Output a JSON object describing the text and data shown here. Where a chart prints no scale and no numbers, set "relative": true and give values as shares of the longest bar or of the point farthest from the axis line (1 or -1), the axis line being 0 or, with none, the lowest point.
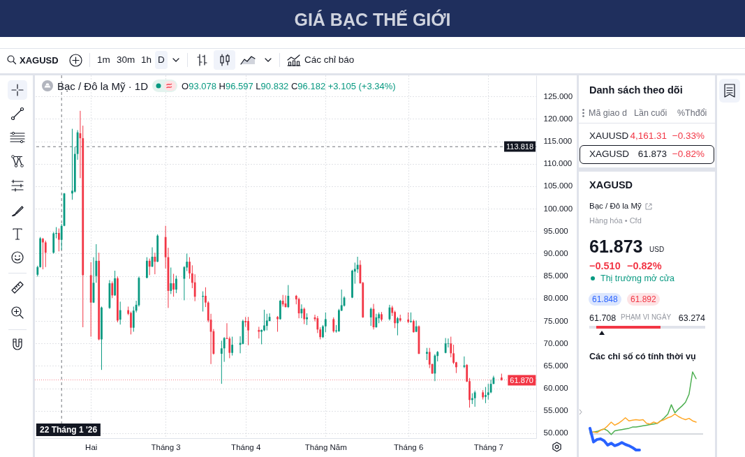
{
  "chart_data": [
    {
      "type": "other",
      "title": "GIÁ BẠC THẾ GIỚI",
      "annotations": [
        "XAGUSD",
        "1m",
        "30m",
        "1h",
        "D",
        "Các chỉ báo"
      ]
    },
    {
      "type": "candlestick",
      "title": "Bạc / Đô la Mỹ · 1D",
      "annotations": [
        "O93.078 H96.597 L90.832 C96.182 +3.105 (+3.34%)"
      ],
      "x": [
        "2026-01-13",
        "2026-01-14",
        "2026-01-15",
        "2026-01-16",
        "2026-01-19",
        "2026-01-20",
        "2026-01-21",
        "2026-01-22",
        "2026-01-23",
        "2026-01-26",
        "2026-01-27",
        "2026-01-28",
        "2026-01-29",
        "2026-01-30",
        "2026-02-02",
        "2026-02-03",
        "2026-02-04",
        "2026-02-05",
        "2026-02-06",
        "2026-02-09",
        "2026-02-10",
        "2026-02-11",
        "2026-02-12",
        "2026-02-13",
        "2026-02-16",
        "2026-02-17",
        "2026-02-18",
        "2026-02-19",
        "2026-02-20",
        "2026-02-23",
        "2026-02-24",
        "2026-02-25",
        "2026-02-26",
        "2026-02-27",
        "2026-03-02",
        "2026-03-03",
        "2026-03-04",
        "2026-03-05",
        "2026-03-06",
        "2026-03-09",
        "2026-03-10",
        "2026-03-11",
        "2026-03-12",
        "2026-03-13",
        "2026-03-16",
        "2026-03-17",
        "2026-03-18",
        "2026-03-19",
        "2026-03-20",
        "2026-03-23",
        "2026-03-24",
        "2026-03-25",
        "2026-03-26",
        "2026-03-27",
        "2026-03-30",
        "2026-03-31",
        "2026-04-01",
        "2026-04-02",
        "2026-04-06",
        "2026-04-07",
        "2026-04-08",
        "2026-04-09",
        "2026-04-10",
        "2026-04-13",
        "2026-04-14",
        "2026-04-15",
        "2026-04-16",
        "2026-04-17",
        "2026-04-20",
        "2026-04-21",
        "2026-04-22",
        "2026-04-23",
        "2026-04-24",
        "2026-04-27",
        "2026-04-28",
        "2026-04-29",
        "2026-04-30",
        "2026-05-01",
        "2026-05-04",
        "2026-05-05",
        "2026-05-06",
        "2026-05-07",
        "2026-05-08",
        "2026-05-11",
        "2026-05-12",
        "2026-05-13",
        "2026-05-14",
        "2026-05-15",
        "2026-05-18",
        "2026-05-19",
        "2026-05-20",
        "2026-05-21",
        "2026-05-22",
        "2026-05-25",
        "2026-05-26",
        "2026-05-27",
        "2026-05-28",
        "2026-05-29",
        "2026-06-01",
        "2026-06-02",
        "2026-06-03",
        "2026-06-04",
        "2026-06-05",
        "2026-06-08",
        "2026-06-09",
        "2026-06-10",
        "2026-06-11",
        "2026-06-12",
        "2026-06-15",
        "2026-06-16",
        "2026-06-17",
        "2026-06-18",
        "2026-06-19",
        "2026-06-22",
        "2026-06-23",
        "2026-06-24",
        "2026-06-25",
        "2026-06-26",
        "2026-06-29",
        "2026-06-30",
        "2026-07-01",
        "2026-07-02",
        "2026-07-03",
        "2026-07-06"
      ],
      "ohlc": [
        [
          85.3,
          87.3,
          84.9,
          87.0
        ],
        [
          87.0,
          93.7,
          86.9,
          93.4
        ],
        [
          93.3,
          93.5,
          86.5,
          92.5
        ],
        [
          92.5,
          92.9,
          87.0,
          90.2
        ],
        [
          90.2,
          94.8,
          90.0,
          94.5
        ],
        [
          94.4,
          95.9,
          93.4,
          94.6
        ],
        [
          94.6,
          95.6,
          90.5,
          93.1
        ],
        [
          93.078,
          96.597,
          90.832,
          96.182
        ],
        [
          96.2,
          103.5,
          96.1,
          103.4
        ],
        [
          103.4,
          117.8,
          102.0,
          104.0
        ],
        [
          103.8,
          113.8,
          103.6,
          112.2
        ],
        [
          112.2,
          117.5,
          110.9,
          117.0
        ],
        [
          116.8,
          121.8,
          106.8,
          115.7
        ],
        [
          115.7,
          118.5,
          73.6,
          85.2
        ],
        [
          85.2,
          88.1,
          71.5,
          79.1
        ],
        [
          79.1,
          89.2,
          79.0,
          83.5
        ],
        [
          85.0,
          92.1,
          83.5,
          88.4
        ],
        [
          88.4,
          90.2,
          70.7,
          70.9
        ],
        [
          70.9,
          78.2,
          64.1,
          78.0
        ],
        [
          77.9,
          84.1,
          77.7,
          83.4
        ],
        [
          83.4,
          83.8,
          80.1,
          80.7
        ],
        [
          80.7,
          86.2,
          80.6,
          84.5
        ],
        [
          84.5,
          84.9,
          74.7,
          75.1
        ],
        [
          75.3,
          79.3,
          74.2,
          77.4
        ],
        [
          77.4,
          78.2,
          76.3,
          76.6
        ],
        [
          76.8,
          77.1,
          72.0,
          73.5
        ],
        [
          73.5,
          78.2,
          72.6,
          77.3
        ],
        [
          77.3,
          79.5,
          76.9,
          78.6
        ],
        [
          78.5,
          84.9,
          78.2,
          84.6
        ],
        [
          84.6,
          89.2,
          84.5,
          88.4
        ],
        [
          88.4,
          88.9,
          85.2,
          87.1
        ],
        [
          87.1,
          91.4,
          87.0,
          89.3
        ],
        [
          89.3,
          90.2,
          85.4,
          88.2
        ],
        [
          88.2,
          94.3,
          88.1,
          94.0
        ],
        [
          93.7,
          96.2,
          86.7,
          89.2
        ],
        [
          89.2,
          91.3,
          77.9,
          81.7
        ],
        [
          81.7,
          86.9,
          81.0,
          83.4
        ],
        [
          83.4,
          85.5,
          80.4,
          82.0
        ],
        [
          82.0,
          85.1,
          81.2,
          84.4
        ],
        [
          84.4,
          87.2,
          79.6,
          87.0
        ],
        [
          86.9,
          90.0,
          86.1,
          88.2
        ],
        [
          88.2,
          89.2,
          84.4,
          85.6
        ],
        [
          85.6,
          87.4,
          82.3,
          83.5
        ],
        [
          83.6,
          85.4,
          79.4,
          80.4
        ],
        [
          80.4,
          81.6,
          77.1,
          80.6
        ],
        [
          80.6,
          82.5,
          78.1,
          79.1
        ],
        [
          79.1,
          79.4,
          74.7,
          75.1
        ],
        [
          75.3,
          76.6,
          65.4,
          72.6
        ],
        [
          72.7,
          73.2,
          67.5,
          67.7
        ],
        [
          67.7,
          70.6,
          61.0,
          68.9
        ],
        [
          68.9,
          71.4,
          65.9,
          71.2
        ],
        [
          71.2,
          74.5,
          71.0,
          71.0
        ],
        [
          71.1,
          71.5,
          66.7,
          67.9
        ],
        [
          67.9,
          71.5,
          67.3,
          69.7
        ],
        [
          69.7,
          71.6,
          67.8,
          70.1
        ],
        [
          69.9,
          75.3,
          69.8,
          75.0
        ],
        [
          75.0,
          75.9,
          73.7,
          74.7
        ],
        [
          75.0,
          75.9,
          69.6,
          72.9
        ],
        [
          73.0,
          73.7,
          71.1,
          72.6
        ],
        [
          72.6,
          73.1,
          69.8,
          73.0
        ],
        [
          72.9,
          77.5,
          72.7,
          74.0
        ],
        [
          73.9,
          76.6,
          72.9,
          75.1
        ],
        [
          75.0,
          76.7,
          74.9,
          75.9
        ],
        [
          75.9,
          76.1,
          72.6,
          75.4
        ],
        [
          75.4,
          79.7,
          75.3,
          79.5
        ],
        [
          79.5,
          80.8,
          78.2,
          78.7
        ],
        [
          78.9,
          80.7,
          78.0,
          78.1
        ],
        [
          78.1,
          83.0,
          77.9,
          80.6
        ],
        [
          80.6,
          80.8,
          78.7,
          79.8
        ],
        [
          79.9,
          80.2,
          75.6,
          76.7
        ],
        [
          76.7,
          78.7,
          75.6,
          77.7
        ],
        [
          77.7,
          78.0,
          74.3,
          75.4
        ],
        [
          75.4,
          76.7,
          74.1,
          75.8
        ],
        [
          75.8,
          76.4,
          74.9,
          75.4
        ],
        [
          75.6,
          76.1,
          72.3,
          73.1
        ],
        [
          73.1,
          73.6,
          70.9,
          71.4
        ],
        [
          71.4,
          74.1,
          71.2,
          73.8
        ],
        [
          73.8,
          76.9,
          72.5,
          75.4
        ],
        [
          75.4,
          75.8,
          72.4,
          72.7
        ],
        [
          72.7,
          74.1,
          72.4,
          72.9
        ],
        [
          72.7,
          77.7,
          72.6,
          77.4
        ],
        [
          77.3,
          82.0,
          77.2,
          78.5
        ],
        [
          78.4,
          80.5,
          78.2,
          80.2
        ],
        [
          80.2,
          86.4,
          80.1,
          86.2
        ],
        [
          86.0,
          88.0,
          83.3,
          86.6
        ],
        [
          86.5,
          89.3,
          85.7,
          87.5
        ],
        [
          87.5,
          88.5,
          83.3,
          83.4
        ],
        [
          83.5,
          83.7,
          75.7,
          75.8
        ],
        [
          75.8,
          78.0,
          73.9,
          77.7
        ],
        [
          77.7,
          78.8,
          73.1,
          73.6
        ],
        [
          73.6,
          76.6,
          73.5,
          75.8
        ],
        [
          75.6,
          76.9,
          74.5,
          76.5
        ],
        [
          76.5,
          77.0,
          74.9,
          75.3
        ],
        [
          75.4,
          78.6,
          75.1,
          78.0
        ],
        [
          78.0,
          78.4,
          76.1,
          76.8
        ],
        [
          77.0,
          77.3,
          73.4,
          74.5
        ],
        [
          74.5,
          75.9,
          71.8,
          75.6
        ],
        [
          75.6,
          76.4,
          74.8,
          75.1
        ],
        [
          75.3,
          76.9,
          74.5,
          74.8
        ],
        [
          74.8,
          76.9,
          74.6,
          75.0
        ],
        [
          75.0,
          75.3,
          72.4,
          72.5
        ],
        [
          72.6,
          75.1,
          72.5,
          73.8
        ],
        [
          73.8,
          74.0,
          67.6,
          67.7
        ],
        [
          67.7,
          69.0,
          66.3,
          68.1
        ],
        [
          68.1,
          69.0,
          64.5,
          65.3
        ],
        [
          65.4,
          65.5,
          63.2,
          63.3
        ],
        [
          63.3,
          67.6,
          61.6,
          67.3
        ],
        [
          67.2,
          68.3,
          66.0,
          68.1
        ],
        [
          67.9,
          71.2,
          67.8,
          70.0
        ],
        [
          69.9,
          71.1,
          69.1,
          70.0
        ],
        [
          70.0,
          71.5,
          66.9,
          67.8
        ],
        [
          67.8,
          69.7,
          65.4,
          65.7
        ],
        [
          65.8,
          65.9,
          63.4,
          64.7
        ],
        [
          64.8,
          67.1,
          64.5,
          65.1
        ],
        [
          65.2,
          65.4,
          61.4,
          61.5
        ],
        [
          61.6,
          62.3,
          55.7,
          57.4
        ],
        [
          57.4,
          58.9,
          56.5,
          57.8
        ],
        [
          57.8,
          59.5,
          55.9,
          59.1
        ],
        [
          59.1,
          59.6,
          57.5,
          58.0
        ],
        [
          58.1,
          60.3,
          56.7,
          58.5
        ],
        [
          58.5,
          61.0,
          57.5,
          59.1
        ],
        [
          59.1,
          61.9,
          58.9,
          61.0
        ],
        [
          61.0,
          62.8,
          60.9,
          62.4
        ],
        [
          62.4,
          63.27,
          61.71,
          61.87
        ]
      ],
      "xlim": [
        "2026-01-12",
        "2026-07-19"
      ],
      "ylim": [
        48.9,
        129.7
      ],
      "yticks": [
        {
          "value": 50,
          "label": "50.000"
        },
        {
          "value": 55,
          "label": "55.000"
        },
        {
          "value": 60,
          "label": "60.000"
        },
        {
          "value": 65,
          "label": "65.000"
        },
        {
          "value": 70,
          "label": "70.000"
        },
        {
          "value": 75,
          "label": "75.000"
        },
        {
          "value": 80,
          "label": "80.000"
        },
        {
          "value": 85,
          "label": "85.000"
        },
        {
          "value": 90,
          "label": "90.000"
        },
        {
          "value": 95,
          "label": "95.000"
        },
        {
          "value": 100,
          "label": "100.000"
        },
        {
          "value": 105,
          "label": "105.000"
        },
        {
          "value": 110,
          "label": "110.000"
        },
        {
          "value": 115,
          "label": "115.000"
        },
        {
          "value": 120,
          "label": "120.000"
        },
        {
          "value": 125,
          "label": "125.000"
        }
      ],
      "xticks": [
        {
          "value": "2026-02-02",
          "label": "Hai"
        },
        {
          "value": "2026-03-02",
          "label": "Tháng 3"
        },
        {
          "value": "2026-04-01",
          "label": "Tháng 4"
        },
        {
          "value": "2026-05-01",
          "label": "Tháng Năm"
        },
        {
          "value": "2026-06-01",
          "label": "Tháng 6"
        },
        {
          "value": "2026-07-01",
          "label": "Tháng 7"
        }
      ],
      "grid": true,
      "ref_lines": [
        {
          "axis": "y",
          "value": 113.818,
          "label": "113.818",
          "color": "#131722",
          "line_style": "dashed"
        },
        {
          "axis": "y",
          "value": 61.87,
          "label": "61.870",
          "color": "#f23645",
          "line_style": "dotted"
        },
        {
          "axis": "x",
          "value": "2026-01-22",
          "label": "22 Tháng 1 '26",
          "color": "#131722",
          "line_style": "dashed"
        }
      ]
    },
    {
      "type": "other",
      "title": "Danh sách theo dõi",
      "annotations": [
        "Mã giao d",
        "Lần cuối",
        "%Thđổi",
        "XAUUSD",
        "4,161.31",
        "−0.33%",
        "XAGUSD",
        "61.873",
        "−0.82%",
        "XAGUSD",
        "Bạc / Đô la Mỹ",
        "Hàng hóa • Cfd",
        "61.873",
        "USD",
        "−0.510",
        "−0.82%",
        "Thị trường mở cửa",
        "61.848",
        "61.892",
        "61.708",
        "PHẠM VI NGÀY",
        "63.274"
      ]
    },
    {
      "type": "line",
      "title": "Các chỉ số có tính thời vụ",
      "relative": true,
      "categories": [
        null,
        null,
        null,
        null,
        null,
        null,
        null,
        null,
        null,
        null,
        null,
        null,
        null,
        null,
        null,
        null,
        null,
        null,
        null,
        null,
        null,
        null,
        null,
        null,
        null,
        null,
        null,
        null,
        null,
        null,
        null
      ],
      "series": [
        {
          "color": "#4caf50",
          "values": [
            0.02,
            0.03,
            0.04,
            0.06,
            0.08,
            0.05,
            -0.01,
            0.05,
            0.06,
            0.07,
            0.08,
            0.09,
            0.11,
            0.11,
            0.12,
            0.13,
            0.14,
            0.15,
            0.16,
            0.17,
            0.21,
            0.26,
            0.32,
            0.47,
            0.34,
            0.4,
            0.45,
            0.51,
            0.64,
            1.0,
            0.89
          ]
        },
        {
          "color": "#ffa726",
          "values": [
            0.03,
            0.03,
            0.02,
            0.06,
            0.08,
            0.13,
            0.19,
            0.14,
            0.17,
            0.21,
            0.26,
            0.21,
            0.22,
            0.23,
            0.22,
            0.23,
            0.17,
            0.16,
            0.19,
            0.17,
            0.21,
            0.23,
            0.26,
            0.28,
            0.32,
            0.28,
            0.25,
            0.23,
            0.25,
            0.21,
            0.19
          ]
        },
        {
          "color": "#2962ff",
          "values": [
            0.09,
            -0.13,
            -0.09,
            -0.08,
            -0.11,
            -0.18,
            -0.15,
            -0.19,
            -0.17,
            -0.14,
            -0.17,
            -0.19,
            -0.22,
            -0.26,
            -0.26,
            null,
            null,
            null,
            null,
            null,
            null,
            null,
            null,
            null,
            null,
            null,
            null,
            null,
            null,
            null,
            null
          ]
        }
      ]
    }
  ]
}
